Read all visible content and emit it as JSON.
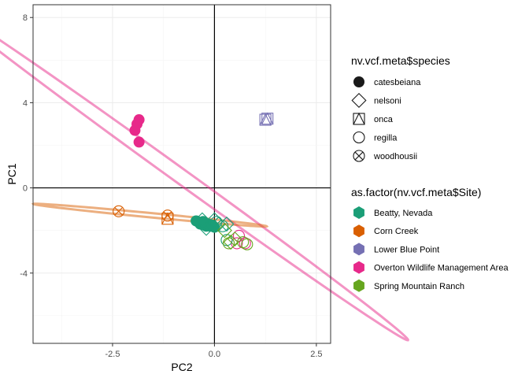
{
  "chart_data": {
    "type": "scatter",
    "xlabel": "PC2",
    "ylabel": "PC1",
    "xlim": [
      -4.45,
      2.85
    ],
    "ylim": [
      -7.3,
      8.6
    ],
    "x_ticks": [
      -2.5,
      0.0,
      2.5
    ],
    "x_tick_labels": [
      "-2.5",
      "0.0",
      "2.5"
    ],
    "y_ticks": [
      -4,
      0,
      4,
      8
    ],
    "y_tick_labels": [
      "-4",
      "0",
      "4",
      "8"
    ],
    "grid": true,
    "reference_lines": {
      "x": 0,
      "y": 0
    },
    "legend_placement": "right",
    "legends": [
      {
        "title": "nv.vcf.meta$species",
        "entries": [
          {
            "label": "catesbeiana",
            "shape": "filled-circle"
          },
          {
            "label": "nelsoni",
            "shape": "diamond"
          },
          {
            "label": "onca",
            "shape": "square-triangle"
          },
          {
            "label": "regilla",
            "shape": "circle"
          },
          {
            "label": "woodhousii",
            "shape": "circle-x"
          }
        ]
      },
      {
        "title": "as.factor(nv.vcf.meta$Site)",
        "entries": [
          {
            "label": "Beatty, Nevada",
            "color": "#1b9e77"
          },
          {
            "label": "Corn Creek",
            "color": "#d95f02"
          },
          {
            "label": "Lower Blue Point",
            "color": "#7570b3"
          },
          {
            "label": "Overton Wildlife Management Area",
            "color": "#e7298a"
          },
          {
            "label": "Spring Mountain Ranch",
            "color": "#66a61e"
          }
        ]
      }
    ],
    "ellipses": [
      {
        "site": "Overton Wildlife Management Area",
        "color": "#e7298a",
        "center": [
          -0.9,
          0.65
        ],
        "angle_deg": -54.1,
        "semi_major": 9.63,
        "semi_minor": 0.25
      },
      {
        "site": "Corn Creek",
        "color": "#d95f02",
        "center": [
          -1.58,
          -1.28
        ],
        "angle_deg": -10.4,
        "semi_major": 2.91,
        "semi_minor": 0.1
      }
    ],
    "series": [
      {
        "site": "Overton Wildlife Management Area",
        "species": "catesbeiana",
        "points": [
          [
            -1.85,
            3.2
          ],
          [
            -1.9,
            3.0
          ],
          [
            -1.95,
            2.7
          ],
          [
            -1.85,
            2.15
          ]
        ]
      },
      {
        "site": "Overton Wildlife Management Area",
        "species": "regilla",
        "points": [
          [
            0.6,
            -2.25
          ],
          [
            0.75,
            -2.6
          ],
          [
            0.55,
            -2.6
          ]
        ]
      },
      {
        "site": "Corn Creek",
        "species": "woodhousii",
        "points": [
          [
            -2.35,
            -1.1
          ],
          [
            -1.15,
            -1.3
          ]
        ]
      },
      {
        "site": "Corn Creek",
        "species": "onca",
        "points": [
          [
            -1.15,
            -1.45
          ]
        ]
      },
      {
        "site": "Lower Blue Point",
        "species": "onca",
        "points": [
          [
            1.25,
            3.2
          ],
          [
            1.3,
            3.25
          ]
        ]
      },
      {
        "site": "Beatty, Nevada",
        "species": "catesbeiana",
        "points": [
          [
            -0.4,
            -1.6
          ],
          [
            -0.35,
            -1.7
          ],
          [
            -0.3,
            -1.65
          ],
          [
            -0.25,
            -1.75
          ],
          [
            -0.2,
            -1.8
          ],
          [
            -0.15,
            -1.7
          ],
          [
            -0.1,
            -1.8
          ],
          [
            -0.05,
            -1.75
          ],
          [
            0.0,
            -1.85
          ],
          [
            -0.45,
            -1.55
          ],
          [
            -0.28,
            -1.58
          ]
        ]
      },
      {
        "site": "Beatty, Nevada",
        "species": "nelsoni",
        "points": [
          [
            -0.3,
            -1.5
          ],
          [
            0.0,
            -1.5
          ],
          [
            0.1,
            -1.7
          ],
          [
            0.3,
            -1.7
          ],
          [
            -0.2,
            -1.9
          ]
        ]
      },
      {
        "site": "Beatty, Nevada",
        "species": "regilla",
        "points": [
          [
            0.05,
            -1.6
          ],
          [
            0.2,
            -1.8
          ],
          [
            0.3,
            -2.45
          ]
        ]
      },
      {
        "site": "Spring Mountain Ranch",
        "species": "regilla",
        "points": [
          [
            0.35,
            -2.6
          ],
          [
            0.8,
            -2.65
          ],
          [
            0.7,
            -2.55
          ]
        ]
      },
      {
        "site": "Spring Mountain Ranch",
        "species": "nelsoni",
        "points": [
          [
            0.4,
            -2.55
          ],
          [
            0.5,
            -2.4
          ],
          [
            0.25,
            -2.0
          ]
        ]
      }
    ]
  }
}
